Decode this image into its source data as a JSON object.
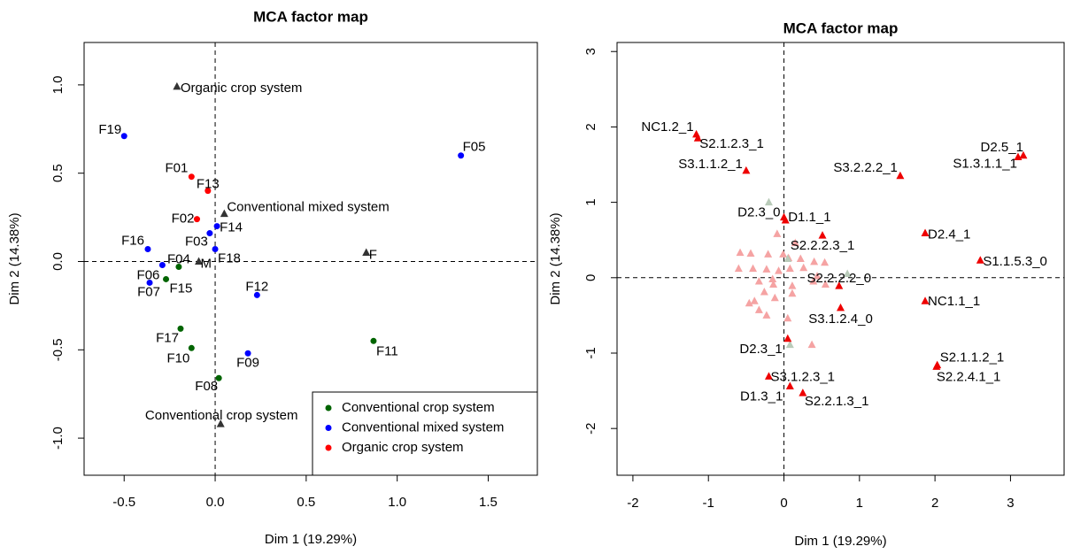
{
  "chart_data": [
    {
      "type": "scatter",
      "title": "MCA factor map",
      "xlabel": "Dim 1 (19.29%)",
      "ylabel": "Dim 2 (14.38%)",
      "xlim": [
        -0.72,
        1.77
      ],
      "ylim": [
        -1.21,
        1.24
      ],
      "xticks": [
        -0.5,
        {
          "value": 0,
          "label": "0.0"
        },
        0.5,
        {
          "value": 1,
          "label": "1.0"
        },
        1.5
      ],
      "yticks": [
        {
          "value": -1,
          "label": "-1.0"
        },
        -0.5,
        {
          "value": 0,
          "label": "0.0"
        },
        0.5,
        {
          "value": 1,
          "label": "1.0"
        }
      ],
      "legend": "bottomright",
      "series": [
        {
          "name": "Conventional crop system",
          "color": "#006400",
          "marker": "circle",
          "labels": [
            "F04",
            "F15",
            "F17",
            "F10",
            "F11",
            "F08"
          ],
          "x": [
            -0.2,
            -0.27,
            -0.19,
            -0.13,
            0.87,
            0.02
          ],
          "values": [
            -0.03,
            -0.1,
            -0.38,
            -0.49,
            -0.45,
            -0.66
          ]
        },
        {
          "name": "Conventional mixed system",
          "color": "#0000ff",
          "marker": "circle",
          "labels": [
            "F19",
            "F05",
            "F14",
            "F03",
            "F16",
            "F18",
            "F06",
            "F07",
            "F12",
            "F09"
          ],
          "x": [
            -0.5,
            1.35,
            0.01,
            -0.03,
            -0.37,
            0.0,
            -0.29,
            -0.36,
            0.23,
            0.18
          ],
          "values": [
            0.71,
            0.6,
            0.2,
            0.16,
            0.07,
            0.07,
            -0.02,
            -0.12,
            -0.19,
            -0.52
          ]
        },
        {
          "name": "Organic crop system",
          "color": "#ff0000",
          "marker": "circle",
          "labels": [
            "F01",
            "F13",
            "F02"
          ],
          "x": [
            -0.13,
            -0.04,
            -0.1
          ],
          "values": [
            0.48,
            0.4,
            0.24
          ]
        },
        {
          "color": "#333333",
          "marker": "triangle",
          "labels": [
            "Organic crop system",
            "Conventional mixed system",
            "F",
            "M",
            "Conventional crop system"
          ],
          "x": [
            -0.21,
            0.05,
            0.83,
            -0.09,
            0.03
          ],
          "values": [
            0.99,
            0.27,
            0.05,
            0.0,
            -0.92
          ]
        }
      ]
    },
    {
      "type": "scatter",
      "title": "MCA factor map",
      "xlabel": "Dim 1 (19.29%)",
      "ylabel": "Dim 2 (14.38%)",
      "xlim": [
        -2.21,
        3.71
      ],
      "ylim": [
        -2.62,
        3.12
      ],
      "xticks": [
        -2,
        -1,
        0,
        1,
        2,
        3
      ],
      "yticks": [
        -2,
        -1,
        0,
        1,
        2,
        3
      ],
      "series": [
        {
          "color": "#f5a3a3",
          "marker": "triangle",
          "x": [
            -0.58,
            -0.44,
            -0.21,
            -0.01,
            0.06,
            0.22,
            0.4,
            -0.6,
            -0.41,
            -0.23,
            -0.07,
            0.08,
            0.26,
            0.44,
            -0.33,
            -0.14,
            0.11,
            0.39,
            0.55,
            -0.39,
            -0.33,
            -0.46,
            -0.12,
            0.11,
            -0.23,
            0.05,
            0.37,
            0.54,
            -0.09,
            0.15,
            -0.15,
            -0.26
          ],
          "values": [
            0.33,
            0.32,
            0.31,
            0.31,
            0.26,
            0.25,
            0.21,
            0.12,
            0.12,
            0.11,
            0.09,
            0.12,
            0.13,
            0.02,
            -0.05,
            -0.09,
            -0.11,
            -0.05,
            -0.09,
            -0.31,
            -0.43,
            -0.34,
            -0.27,
            -0.21,
            -0.5,
            -0.54,
            -0.89,
            0.2,
            0.58,
            0.46,
            -0.02,
            -0.19
          ]
        },
        {
          "color": "#b9cbb9",
          "marker": "triangle",
          "x": [
            -0.2,
            0.84,
            0.08,
            0.05
          ],
          "values": [
            1.0,
            0.05,
            -0.89,
            0.25
          ]
        },
        {
          "color": "#ee0000",
          "marker": "triangle",
          "labels": [
            "NC1.2_1",
            "S2.1.2.3_1",
            "S3.1.1.2_1",
            "S3.2.2.2_1",
            "S1.3.1.1_1",
            "D2.5_1",
            "D2.3_0",
            "D1.1_1",
            "S2.2.2.3_1",
            "D2.4_1",
            "S1.1.5.3_0",
            "S2.2.2.2_0",
            "NC1.1_1",
            "S3.1.2.4_0",
            "D2.3_1",
            "S2.1.1.2_1",
            "S2.2.4.1_1",
            "S3.1.2.3_1",
            "D1.3_1",
            "S2.2.1.3_1"
          ],
          "x": [
            -1.16,
            -1.14,
            -0.5,
            1.54,
            3.1,
            3.17,
            0.0,
            0.02,
            0.51,
            1.87,
            2.6,
            0.73,
            1.87,
            0.75,
            0.05,
            2.03,
            2.02,
            -0.2,
            0.08,
            0.25
          ],
          "values": [
            1.9,
            1.85,
            1.42,
            1.35,
            1.6,
            1.62,
            0.8,
            0.76,
            0.56,
            0.59,
            0.23,
            -0.11,
            -0.31,
            -0.4,
            -0.81,
            -1.16,
            -1.18,
            -1.31,
            -1.44,
            -1.53
          ]
        }
      ]
    }
  ]
}
